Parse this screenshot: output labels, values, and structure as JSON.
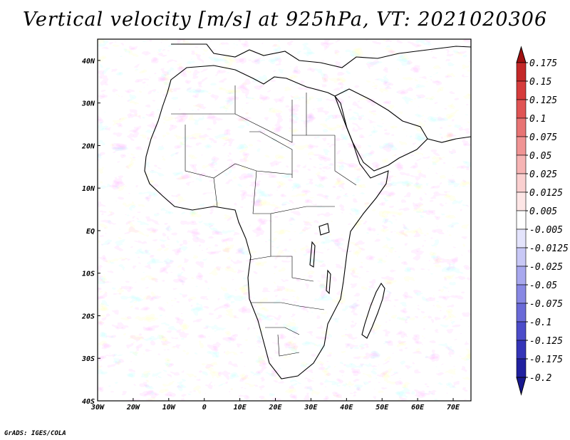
{
  "title": "Vertical velocity [m/s] at 925hPa, VT: 2021020306",
  "credit": "GrADS: IGES/COLA",
  "map": {
    "lon_range": [
      -30,
      75
    ],
    "lat_range": [
      -40,
      45
    ],
    "lon_ticks": [
      {
        "value": -30,
        "label": "30W"
      },
      {
        "value": -20,
        "label": "20W"
      },
      {
        "value": -10,
        "label": "10W"
      },
      {
        "value": 0,
        "label": "0"
      },
      {
        "value": 10,
        "label": "10E"
      },
      {
        "value": 20,
        "label": "20E"
      },
      {
        "value": 30,
        "label": "30E"
      },
      {
        "value": 40,
        "label": "40E"
      },
      {
        "value": 50,
        "label": "50E"
      },
      {
        "value": 60,
        "label": "60E"
      },
      {
        "value": 70,
        "label": "70E"
      }
    ],
    "lat_ticks": [
      {
        "value": 40,
        "label": "40N"
      },
      {
        "value": 30,
        "label": "30N"
      },
      {
        "value": 20,
        "label": "20N"
      },
      {
        "value": 10,
        "label": "10N"
      },
      {
        "value": 0,
        "label": "EQ"
      },
      {
        "value": -10,
        "label": "10S"
      },
      {
        "value": -20,
        "label": "20S"
      },
      {
        "value": -30,
        "label": "30S"
      },
      {
        "value": -40,
        "label": "40S"
      }
    ]
  },
  "colorbar": {
    "levels": [
      {
        "value": 0.175,
        "label": "0.175",
        "color": "#b01818"
      },
      {
        "value": 0.15,
        "label": "0.15",
        "color": "#c42828"
      },
      {
        "value": 0.125,
        "label": "0.125",
        "color": "#d63c3c"
      },
      {
        "value": 0.1,
        "label": "0.1",
        "color": "#e05454"
      },
      {
        "value": 0.075,
        "label": "0.075",
        "color": "#e87474"
      },
      {
        "value": 0.05,
        "label": "0.05",
        "color": "#f09494"
      },
      {
        "value": 0.025,
        "label": "0.025",
        "color": "#f6b4b4"
      },
      {
        "value": 0.0125,
        "label": "0.0125",
        "color": "#fad0d0"
      },
      {
        "value": 0.005,
        "label": "0.005",
        "color": "#fde6e6"
      },
      {
        "value": -0.005,
        "label": "-0.005",
        "color": "#ffffff"
      },
      {
        "value": -0.0125,
        "label": "-0.0125",
        "color": "#e4e4fc"
      },
      {
        "value": -0.025,
        "label": "-0.025",
        "color": "#c8c8f6"
      },
      {
        "value": -0.05,
        "label": "-0.05",
        "color": "#a8a8ee"
      },
      {
        "value": -0.075,
        "label": "-0.075",
        "color": "#8888e4"
      },
      {
        "value": -0.1,
        "label": "-0.1",
        "color": "#6a6ad8"
      },
      {
        "value": -0.125,
        "label": "-0.125",
        "color": "#4c4cca"
      },
      {
        "value": -0.175,
        "label": "-0.175",
        "color": "#3434b8"
      },
      {
        "value": -0.2,
        "label": "-0.2",
        "color": "#2020a0"
      }
    ],
    "over_color": "#a01010",
    "under_color": "#181890"
  }
}
